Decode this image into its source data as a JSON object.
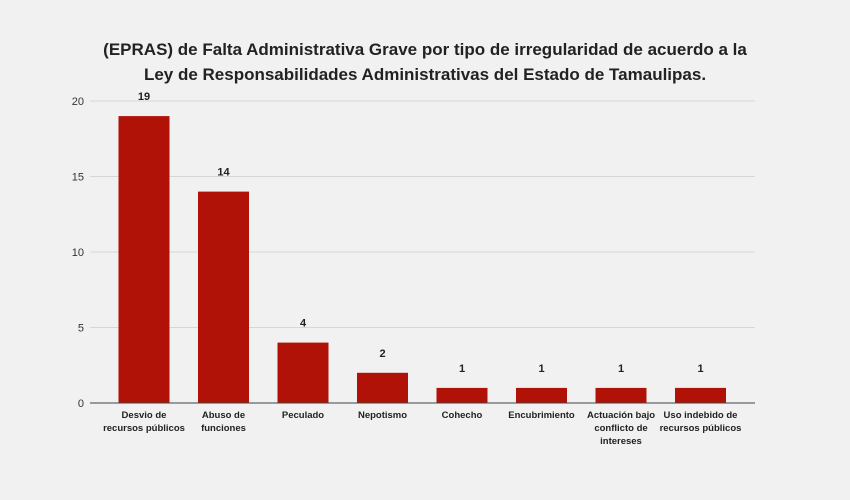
{
  "chart_data": {
    "type": "bar",
    "title_lines": [
      "(EPRAS) de Falta Administrativa Grave por tipo de irregularidad de acuerdo a la",
      "Ley de Responsabilidades Administrativas del Estado de Tamaulipas."
    ],
    "categories": [
      "Desvio de recursos públicos",
      "Abuso de funciones",
      "Peculado",
      "Nepotismo",
      "Cohecho",
      "Encubrimiento",
      "Actuación bajo conflicto de intereses",
      "Uso indebido de recursos públicos"
    ],
    "values": [
      19,
      14,
      4,
      2,
      1,
      1,
      1,
      1
    ],
    "data_labels": [
      "19",
      "14",
      "4",
      "2",
      "1",
      "1",
      "1",
      "1"
    ],
    "ylim": [
      0,
      20
    ],
    "yticks": [
      0,
      5,
      10,
      15,
      20
    ],
    "grid": true,
    "legend": "none",
    "xlabel": "",
    "ylabel": "",
    "bar_color": "#b01208"
  }
}
